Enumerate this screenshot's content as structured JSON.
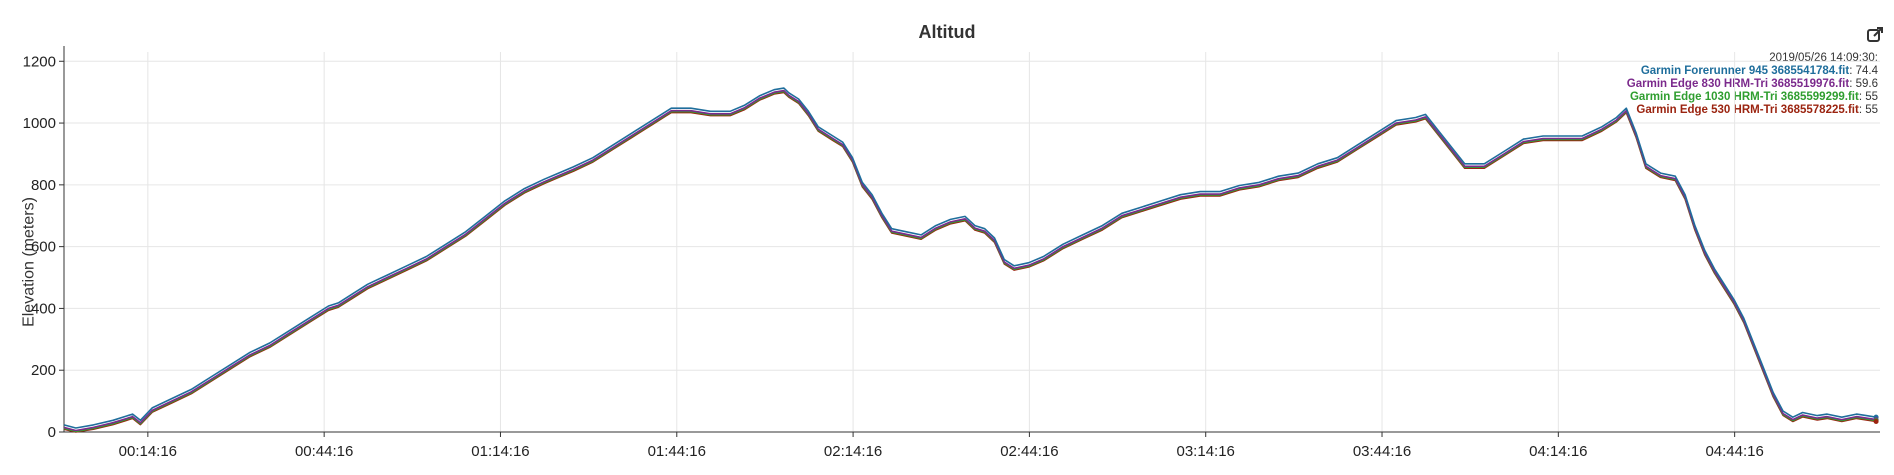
{
  "chart_data": {
    "type": "line",
    "title": "Altitud",
    "ylabel": "Elevation (meters)",
    "xlabel": "",
    "ylim": [
      0,
      1230
    ],
    "xlim_seconds": [
      0,
      18540
    ],
    "y_ticks": [
      0,
      200,
      400,
      600,
      800,
      1000,
      1200
    ],
    "x_ticks": [
      {
        "t": 856,
        "label": "00:14:16"
      },
      {
        "t": 2656,
        "label": "00:44:16"
      },
      {
        "t": 4456,
        "label": "01:14:16"
      },
      {
        "t": 6256,
        "label": "01:44:16"
      },
      {
        "t": 8056,
        "label": "02:14:16"
      },
      {
        "t": 9856,
        "label": "02:44:16"
      },
      {
        "t": 11656,
        "label": "03:14:16"
      },
      {
        "t": 13456,
        "label": "03:44:16"
      },
      {
        "t": 15256,
        "label": "04:14:16"
      },
      {
        "t": 17056,
        "label": "04:44:16"
      }
    ],
    "grid": true,
    "legend_position": "top-right",
    "legend_timestamp": "2019/05/26 14:09:30:",
    "series": [
      {
        "name": "Garmin Forerunner 945 3685541784.fit",
        "readout": "74.4",
        "color": "#1f6e9c",
        "offset": 8
      },
      {
        "name": "Garmin Edge 830 HRM-Tri 3685519976.fit",
        "readout": "59.6",
        "color": "#7b2a8c",
        "offset": 0
      },
      {
        "name": "Garmin Edge 1030 HRM-Tri 3685599299.fit",
        "readout": "55",
        "color": "#2f9e2f",
        "offset": -3
      },
      {
        "name": "Garmin Edge 530 HRM-Tri 3685578225.fit",
        "readout": "55",
        "color": "#9b2410",
        "offset": -6
      }
    ],
    "profile": [
      [
        0,
        15
      ],
      [
        120,
        5
      ],
      [
        300,
        15
      ],
      [
        500,
        30
      ],
      [
        700,
        50
      ],
      [
        780,
        30
      ],
      [
        900,
        70
      ],
      [
        1100,
        100
      ],
      [
        1300,
        130
      ],
      [
        1500,
        170
      ],
      [
        1700,
        210
      ],
      [
        1900,
        250
      ],
      [
        2100,
        280
      ],
      [
        2300,
        320
      ],
      [
        2500,
        360
      ],
      [
        2700,
        400
      ],
      [
        2800,
        410
      ],
      [
        2950,
        440
      ],
      [
        3100,
        470
      ],
      [
        3300,
        500
      ],
      [
        3500,
        530
      ],
      [
        3700,
        560
      ],
      [
        3900,
        600
      ],
      [
        4100,
        640
      ],
      [
        4300,
        690
      ],
      [
        4500,
        740
      ],
      [
        4700,
        780
      ],
      [
        4900,
        810
      ],
      [
        5050,
        830
      ],
      [
        5200,
        850
      ],
      [
        5400,
        880
      ],
      [
        5600,
        920
      ],
      [
        5800,
        960
      ],
      [
        6000,
        1000
      ],
      [
        6150,
        1030
      ],
      [
        6200,
        1040
      ],
      [
        6400,
        1040
      ],
      [
        6600,
        1030
      ],
      [
        6800,
        1030
      ],
      [
        6950,
        1050
      ],
      [
        7100,
        1080
      ],
      [
        7250,
        1100
      ],
      [
        7350,
        1105
      ],
      [
        7400,
        1090
      ],
      [
        7500,
        1070
      ],
      [
        7600,
        1030
      ],
      [
        7700,
        980
      ],
      [
        7850,
        950
      ],
      [
        7950,
        930
      ],
      [
        8050,
        880
      ],
      [
        8150,
        800
      ],
      [
        8250,
        760
      ],
      [
        8350,
        700
      ],
      [
        8450,
        650
      ],
      [
        8600,
        640
      ],
      [
        8750,
        630
      ],
      [
        8900,
        660
      ],
      [
        9050,
        680
      ],
      [
        9200,
        690
      ],
      [
        9300,
        660
      ],
      [
        9400,
        650
      ],
      [
        9500,
        620
      ],
      [
        9600,
        550
      ],
      [
        9700,
        530
      ],
      [
        9850,
        540
      ],
      [
        10000,
        560
      ],
      [
        10200,
        600
      ],
      [
        10400,
        630
      ],
      [
        10600,
        660
      ],
      [
        10800,
        700
      ],
      [
        11000,
        720
      ],
      [
        11200,
        740
      ],
      [
        11400,
        760
      ],
      [
        11600,
        770
      ],
      [
        11800,
        770
      ],
      [
        12000,
        790
      ],
      [
        12200,
        800
      ],
      [
        12400,
        820
      ],
      [
        12600,
        830
      ],
      [
        12800,
        860
      ],
      [
        13000,
        880
      ],
      [
        13200,
        920
      ],
      [
        13400,
        960
      ],
      [
        13600,
        1000
      ],
      [
        13800,
        1010
      ],
      [
        13900,
        1020
      ],
      [
        14000,
        980
      ],
      [
        14150,
        920
      ],
      [
        14300,
        860
      ],
      [
        14500,
        860
      ],
      [
        14700,
        900
      ],
      [
        14900,
        940
      ],
      [
        15100,
        950
      ],
      [
        15300,
        950
      ],
      [
        15500,
        950
      ],
      [
        15700,
        980
      ],
      [
        15850,
        1010
      ],
      [
        15950,
        1040
      ],
      [
        16050,
        960
      ],
      [
        16150,
        860
      ],
      [
        16300,
        830
      ],
      [
        16450,
        820
      ],
      [
        16550,
        760
      ],
      [
        16650,
        660
      ],
      [
        16750,
        580
      ],
      [
        16850,
        520
      ],
      [
        16950,
        470
      ],
      [
        17050,
        420
      ],
      [
        17150,
        360
      ],
      [
        17250,
        280
      ],
      [
        17350,
        200
      ],
      [
        17450,
        120
      ],
      [
        17550,
        60
      ],
      [
        17650,
        40
      ],
      [
        17750,
        55
      ],
      [
        17900,
        45
      ],
      [
        18000,
        50
      ],
      [
        18150,
        40
      ],
      [
        18300,
        50
      ],
      [
        18400,
        45
      ],
      [
        18500,
        40
      ]
    ]
  }
}
